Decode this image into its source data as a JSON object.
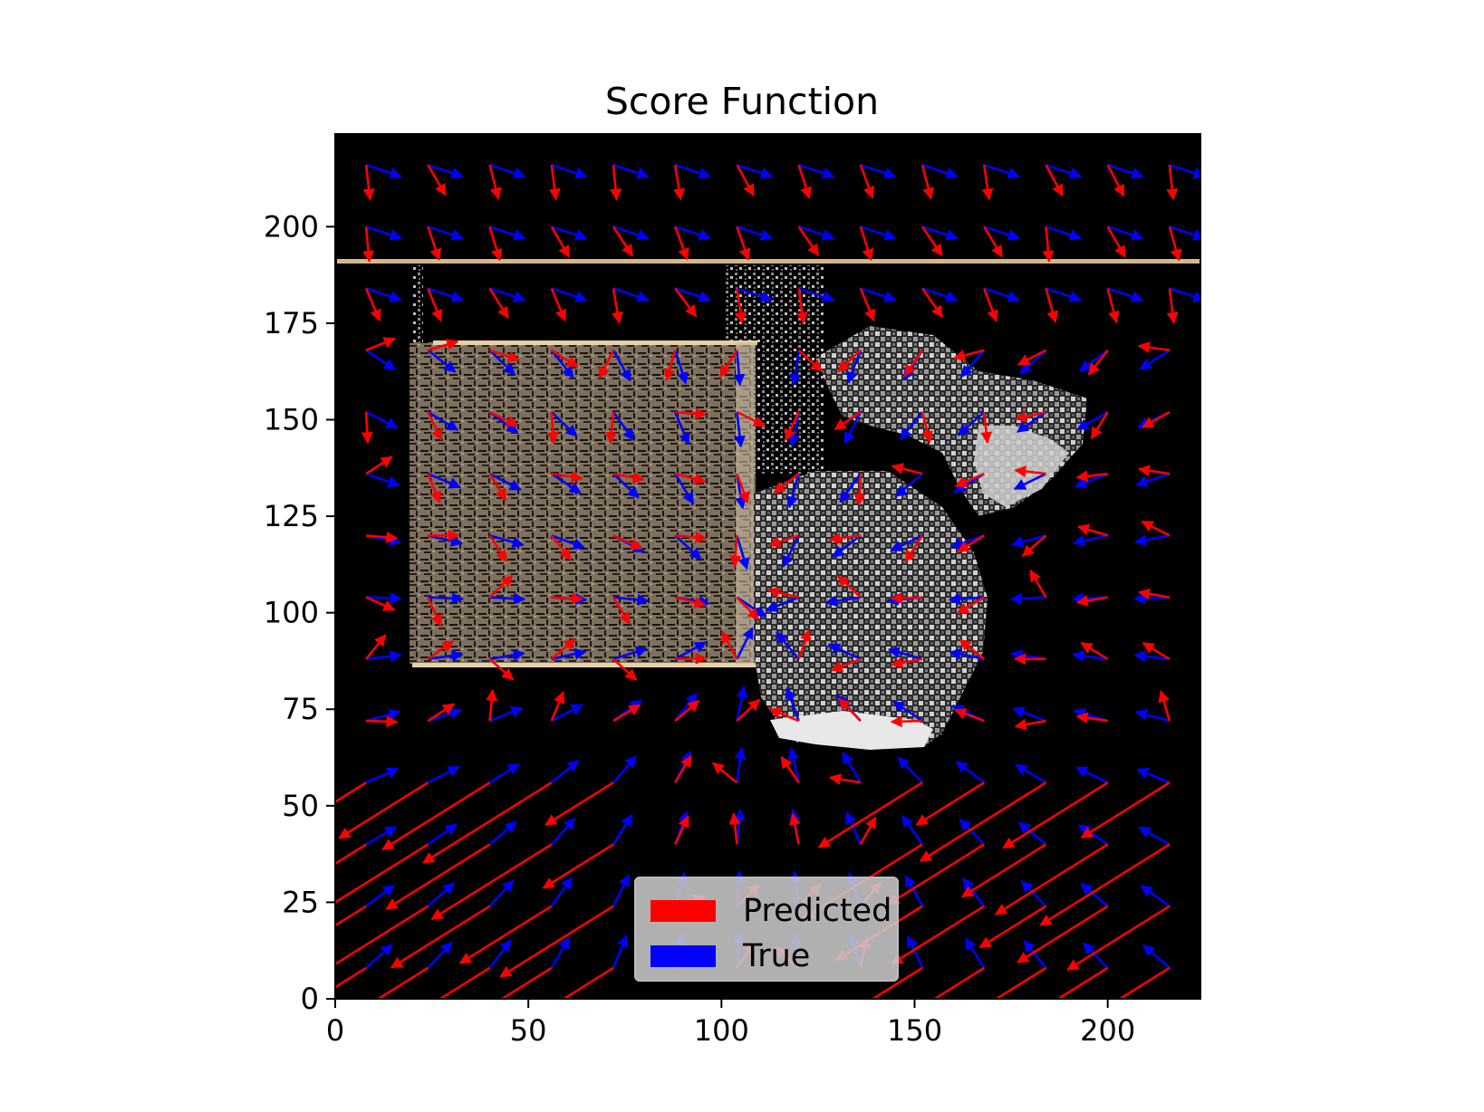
{
  "chart_data": {
    "type": "quiver",
    "title": "Score Function",
    "xlabel": "",
    "ylabel": "",
    "xlim": [
      0,
      224
    ],
    "ylim": [
      0,
      224
    ],
    "x_ticks": [
      "0",
      "50",
      "100",
      "150",
      "200"
    ],
    "y_ticks": [
      "0",
      "25",
      "50",
      "75",
      "100",
      "125",
      "150",
      "175",
      "200"
    ],
    "background": "depth image of a room scene (dark background, textured wall panel, grayscale object)",
    "grid_x": [
      8,
      24,
      40,
      56,
      72,
      88,
      104,
      120,
      136,
      152,
      168,
      184,
      200,
      216
    ],
    "grid_y": [
      8,
      24,
      40,
      56,
      72,
      88,
      104,
      120,
      136,
      152,
      168,
      184,
      200,
      216
    ],
    "series": [
      {
        "name": "Predicted",
        "color": "#ff0000"
      },
      {
        "name": "True",
        "color": "#0000ff"
      }
    ],
    "legend": {
      "position": "lower-center",
      "entries": [
        "Predicted",
        "True"
      ]
    }
  }
}
